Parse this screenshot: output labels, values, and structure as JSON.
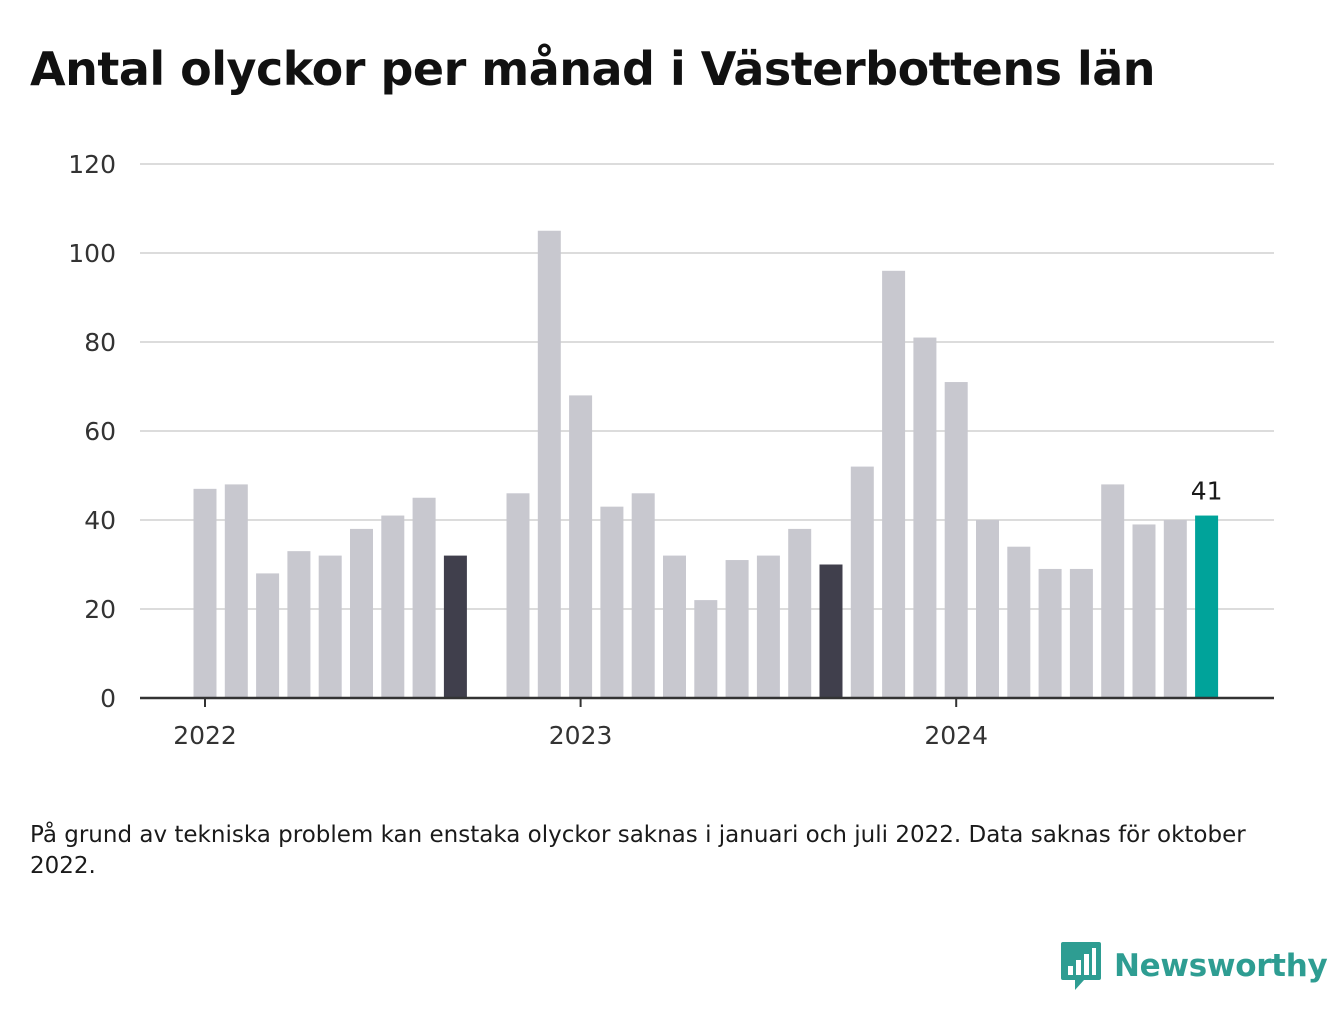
{
  "title": "Antal olyckor per månad i Västerbottens län",
  "footnote": "På grund av tekniska problem kan enstaka olyckor saknas i januari och juli 2022. Data saknas för oktober 2022.",
  "brand": {
    "name": "Newsworthy",
    "icon": "newsworthy-logo-icon",
    "color": "#2e9d92"
  },
  "chart_data": {
    "type": "bar",
    "x": [
      "2022-01",
      "2022-02",
      "2022-03",
      "2022-04",
      "2022-05",
      "2022-06",
      "2022-07",
      "2022-08",
      "2022-09",
      "2022-10",
      "2022-11",
      "2022-12",
      "2023-01",
      "2023-02",
      "2023-03",
      "2023-04",
      "2023-05",
      "2023-06",
      "2023-07",
      "2023-08",
      "2023-09",
      "2023-10",
      "2023-11",
      "2023-12",
      "2024-01",
      "2024-02",
      "2024-03",
      "2024-04",
      "2024-05",
      "2024-06",
      "2024-07",
      "2024-08",
      "2024-09"
    ],
    "values": [
      47,
      48,
      28,
      33,
      32,
      38,
      41,
      45,
      32,
      null,
      46,
      105,
      68,
      43,
      46,
      32,
      22,
      31,
      32,
      38,
      30,
      52,
      96,
      81,
      71,
      40,
      34,
      29,
      29,
      48,
      39,
      40,
      41
    ],
    "bar_colors": [
      "#c8c8cf",
      "#c8c8cf",
      "#c8c8cf",
      "#c8c8cf",
      "#c8c8cf",
      "#c8c8cf",
      "#c8c8cf",
      "#c8c8cf",
      "#403f4c",
      "#c8c8cf",
      "#c8c8cf",
      "#c8c8cf",
      "#c8c8cf",
      "#c8c8cf",
      "#c8c8cf",
      "#c8c8cf",
      "#c8c8cf",
      "#c8c8cf",
      "#c8c8cf",
      "#c8c8cf",
      "#403f4c",
      "#c8c8cf",
      "#c8c8cf",
      "#c8c8cf",
      "#c8c8cf",
      "#c8c8cf",
      "#c8c8cf",
      "#c8c8cf",
      "#c8c8cf",
      "#c8c8cf",
      "#c8c8cf",
      "#c8c8cf",
      "#00a39a"
    ],
    "highlight_label": {
      "index": 32,
      "text": "41"
    },
    "x_ticks": [
      {
        "at": "2022-01",
        "label": "2022"
      },
      {
        "at": "2023-01",
        "label": "2023"
      },
      {
        "at": "2024-01",
        "label": "2024"
      }
    ],
    "y_ticks": [
      0,
      20,
      40,
      60,
      80,
      100,
      120
    ],
    "ylim": [
      0,
      120
    ],
    "grid": true,
    "legend": "none",
    "colors": {
      "bar": "#c8c8cf",
      "dark": "#403f4c",
      "highlight": "#00a39a",
      "grid": "#dcdcdc",
      "axis": "#333333"
    }
  }
}
